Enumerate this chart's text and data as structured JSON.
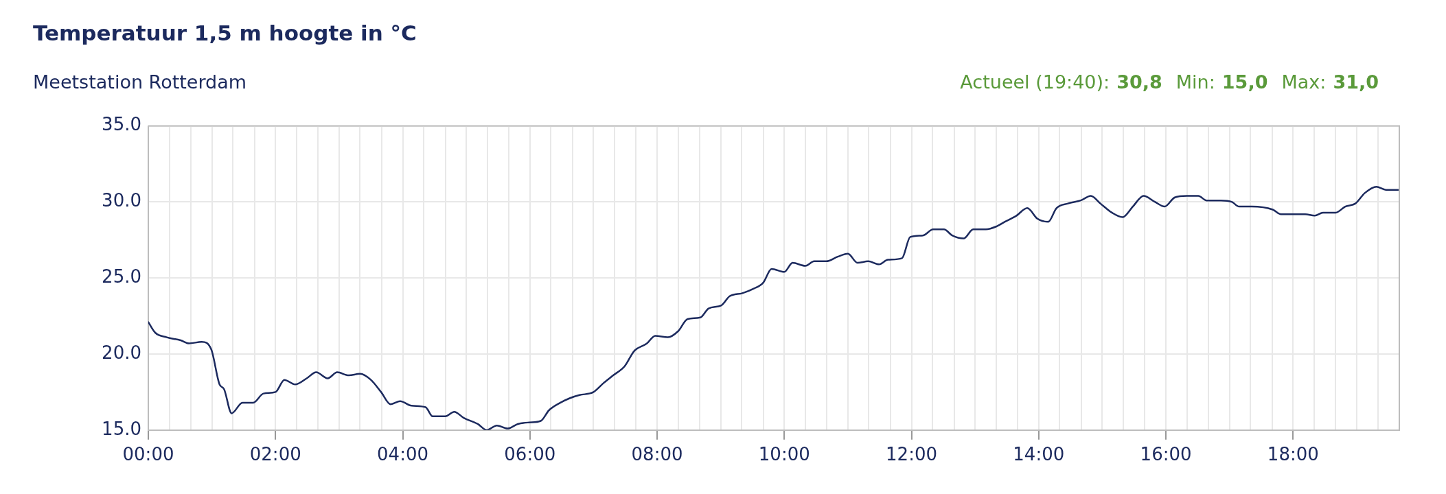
{
  "chart_data": {
    "type": "line",
    "title": "Temperatuur 1,5 m hoogte in °C",
    "subtitle": "Meetstation Rotterdam",
    "annotations": [
      "Actueel (19:40):",
      "30,8",
      "Min:",
      "15,0",
      "Max:",
      "31,0"
    ],
    "x": [
      0,
      0.11,
      0.29,
      0.51,
      0.64,
      0.84,
      0.99,
      1.12,
      1.19,
      1.31,
      1.48,
      1.65,
      1.81,
      2.0,
      2.14,
      2.31,
      2.49,
      2.64,
      2.82,
      2.97,
      3.15,
      3.33,
      3.5,
      3.66,
      3.81,
      3.96,
      4.14,
      4.36,
      4.47,
      4.67,
      4.81,
      4.96,
      5.18,
      5.32,
      5.48,
      5.65,
      5.81,
      5.99,
      6.17,
      6.3,
      6.48,
      6.63,
      6.78,
      7.0,
      7.16,
      7.31,
      7.49,
      7.64,
      7.84,
      7.97,
      8.17,
      8.33,
      8.48,
      8.68,
      8.81,
      9.01,
      9.14,
      9.34,
      9.52,
      9.67,
      9.8,
      10.0,
      10.13,
      10.33,
      10.47,
      10.66,
      10.84,
      11.0,
      11.15,
      11.32,
      11.49,
      11.63,
      11.85,
      11.98,
      12.18,
      12.34,
      12.51,
      12.64,
      12.82,
      12.97,
      13.17,
      13.34,
      13.47,
      13.65,
      13.82,
      13.98,
      14.15,
      14.28,
      14.46,
      14.66,
      14.82,
      14.97,
      15.15,
      15.32,
      15.48,
      15.65,
      15.83,
      15.98,
      16.14,
      16.33,
      16.51,
      16.64,
      16.86,
      17.04,
      17.15,
      17.35,
      17.68,
      17.81,
      18.01,
      18.19,
      18.34,
      18.47,
      18.67,
      18.82,
      18.98,
      19.13,
      19.31,
      19.46,
      19.67
    ],
    "series": [
      {
        "color": "#1c2a5e",
        "values": [
          22.1,
          21.4,
          21.1,
          20.9,
          20.7,
          20.8,
          20.3,
          18.0,
          17.7,
          16.1,
          16.8,
          16.8,
          17.4,
          17.5,
          18.3,
          18.0,
          18.4,
          18.8,
          18.4,
          18.8,
          18.6,
          18.7,
          18.3,
          17.5,
          16.7,
          16.9,
          16.6,
          16.5,
          15.9,
          15.9,
          16.2,
          15.8,
          15.4,
          15.0,
          15.3,
          15.1,
          15.4,
          15.5,
          15.6,
          16.3,
          16.8,
          17.1,
          17.3,
          17.5,
          18.1,
          18.6,
          19.2,
          20.2,
          20.7,
          21.2,
          21.1,
          21.5,
          22.3,
          22.4,
          23.0,
          23.2,
          23.8,
          24.0,
          24.3,
          24.7,
          25.6,
          25.4,
          26.0,
          25.8,
          26.1,
          26.1,
          26.4,
          26.6,
          26.0,
          26.1,
          25.9,
          26.2,
          26.3,
          27.7,
          27.8,
          28.2,
          28.2,
          27.8,
          27.6,
          28.2,
          28.2,
          28.4,
          28.7,
          29.1,
          29.6,
          28.9,
          28.7,
          29.6,
          29.9,
          30.1,
          30.4,
          29.9,
          29.3,
          29.0,
          29.7,
          30.4,
          30.0,
          29.7,
          30.3,
          30.4,
          30.4,
          30.1,
          30.1,
          30.0,
          29.7,
          29.7,
          29.5,
          29.2,
          29.2,
          29.2,
          29.1,
          29.3,
          29.3,
          29.7,
          29.9,
          30.6,
          31.0,
          30.8,
          30.8
        ]
      }
    ],
    "xlim": [
      0,
      19.67
    ],
    "xticks": [
      {
        "value": 0,
        "label": "00:00"
      },
      {
        "value": 0.33,
        "label": null
      },
      {
        "value": 0.67,
        "label": null
      },
      {
        "value": 1,
        "label": null
      },
      {
        "value": 1.33,
        "label": null
      },
      {
        "value": 1.67,
        "label": null
      },
      {
        "value": 2,
        "label": "02:00"
      },
      {
        "value": 2.33,
        "label": null
      },
      {
        "value": 2.67,
        "label": null
      },
      {
        "value": 3,
        "label": null
      },
      {
        "value": 3.33,
        "label": null
      },
      {
        "value": 3.67,
        "label": null
      },
      {
        "value": 4,
        "label": "04:00"
      },
      {
        "value": 4.33,
        "label": null
      },
      {
        "value": 4.67,
        "label": null
      },
      {
        "value": 5,
        "label": null
      },
      {
        "value": 5.33,
        "label": null
      },
      {
        "value": 5.67,
        "label": null
      },
      {
        "value": 6,
        "label": "06:00"
      },
      {
        "value": 6.33,
        "label": null
      },
      {
        "value": 6.67,
        "label": null
      },
      {
        "value": 7,
        "label": null
      },
      {
        "value": 7.33,
        "label": null
      },
      {
        "value": 7.67,
        "label": null
      },
      {
        "value": 8,
        "label": "08:00"
      },
      {
        "value": 8.33,
        "label": null
      },
      {
        "value": 8.67,
        "label": null
      },
      {
        "value": 9,
        "label": null
      },
      {
        "value": 9.33,
        "label": null
      },
      {
        "value": 9.67,
        "label": null
      },
      {
        "value": 10,
        "label": "10:00"
      },
      {
        "value": 10.33,
        "label": null
      },
      {
        "value": 10.67,
        "label": null
      },
      {
        "value": 11,
        "label": null
      },
      {
        "value": 11.33,
        "label": null
      },
      {
        "value": 11.67,
        "label": null
      },
      {
        "value": 12,
        "label": "12:00"
      },
      {
        "value": 12.33,
        "label": null
      },
      {
        "value": 12.67,
        "label": null
      },
      {
        "value": 13,
        "label": null
      },
      {
        "value": 13.33,
        "label": null
      },
      {
        "value": 13.67,
        "label": null
      },
      {
        "value": 14,
        "label": "14:00"
      },
      {
        "value": 14.33,
        "label": null
      },
      {
        "value": 14.67,
        "label": null
      },
      {
        "value": 15,
        "label": null
      },
      {
        "value": 15.33,
        "label": null
      },
      {
        "value": 15.67,
        "label": null
      },
      {
        "value": 16,
        "label": "16:00"
      },
      {
        "value": 16.33,
        "label": null
      },
      {
        "value": 16.67,
        "label": null
      },
      {
        "value": 17,
        "label": null
      },
      {
        "value": 17.33,
        "label": null
      },
      {
        "value": 17.67,
        "label": null
      },
      {
        "value": 18,
        "label": "18:00"
      },
      {
        "value": 18.33,
        "label": null
      },
      {
        "value": 18.67,
        "label": null
      },
      {
        "value": 19,
        "label": null
      },
      {
        "value": 19.33,
        "label": null
      }
    ],
    "ylim": [
      15,
      35
    ],
    "yticks": [
      {
        "value": 15,
        "label": "15.0"
      },
      {
        "value": 20,
        "label": "20.0"
      },
      {
        "value": 25,
        "label": "25.0"
      },
      {
        "value": 30,
        "label": "30.0"
      },
      {
        "value": 35,
        "label": "35.0"
      }
    ],
    "grid": true,
    "legend": false,
    "marker": "none",
    "line_style": "solid"
  }
}
